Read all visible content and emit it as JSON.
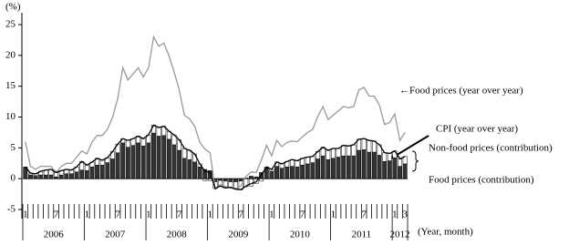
{
  "chart_data": {
    "type": "bar-line",
    "y_axis_label": "(%)",
    "x_axis_label": "(Year, month)",
    "categories": [
      "1",
      null,
      null,
      null,
      null,
      null,
      "7",
      null,
      null,
      null,
      null,
      null,
      "1",
      null,
      null,
      null,
      null,
      null,
      "7",
      null,
      null,
      null,
      null,
      null,
      "1",
      null,
      null,
      null,
      null,
      null,
      "7",
      null,
      null,
      null,
      null,
      null,
      "1",
      null,
      null,
      null,
      null,
      null,
      "7",
      null,
      null,
      null,
      null,
      null,
      "1",
      null,
      null,
      null,
      null,
      null,
      "7",
      null,
      null,
      null,
      null,
      null,
      "1",
      null,
      null,
      null,
      null,
      null,
      "7",
      null,
      null,
      null,
      null,
      null,
      "1",
      null,
      "3"
    ],
    "years": [
      "2006",
      "2007",
      "2008",
      "2009",
      "2010",
      "2011",
      "2012"
    ],
    "series": [
      {
        "name": "Food prices (contribution)",
        "kind": "bar",
        "color": "#333333",
        "values": [
          1.9,
          0.6,
          0.5,
          0.6,
          0.6,
          0.6,
          0.3,
          0.6,
          0.8,
          0.8,
          1.1,
          1.4,
          1.3,
          1.9,
          2.2,
          2.2,
          2.6,
          3.2,
          4.2,
          5.8,
          5.1,
          5.4,
          5.8,
          5.3,
          5.8,
          7.4,
          6.9,
          7.0,
          6.4,
          5.5,
          4.6,
          3.3,
          3.1,
          2.7,
          1.9,
          1.5,
          1.3,
          -0.5,
          -0.3,
          -0.4,
          -0.5,
          -0.5,
          -0.4,
          0.1,
          0.4,
          0.3,
          1.0,
          1.7,
          1.2,
          2.0,
          1.7,
          1.9,
          2.0,
          1.9,
          2.2,
          2.4,
          2.6,
          3.2,
          3.7,
          3.1,
          3.3,
          3.5,
          3.7,
          3.7,
          3.7,
          4.6,
          4.7,
          4.3,
          4.3,
          3.8,
          2.8,
          2.9,
          3.4,
          2.0,
          2.4
        ]
      },
      {
        "name": "Non-food prices (contribution)",
        "kind": "bar",
        "color": "#ffffff",
        "values": [
          0.0,
          0.3,
          0.3,
          0.6,
          0.8,
          0.9,
          0.7,
          0.7,
          0.7,
          0.6,
          0.8,
          1.4,
          0.9,
          0.8,
          1.1,
          0.8,
          0.8,
          1.2,
          1.4,
          0.7,
          1.1,
          1.1,
          1.1,
          1.2,
          1.3,
          1.3,
          1.4,
          1.5,
          1.3,
          1.6,
          1.7,
          1.6,
          1.5,
          1.3,
          0.5,
          -0.3,
          -0.3,
          -1.1,
          -0.9,
          -1.1,
          -0.9,
          -1.2,
          -1.4,
          -1.3,
          -1.2,
          -0.8,
          -0.4,
          0.2,
          0.3,
          0.7,
          0.7,
          0.9,
          1.1,
          1.0,
          1.1,
          1.1,
          1.0,
          1.2,
          1.4,
          1.5,
          1.6,
          1.4,
          1.7,
          1.6,
          1.8,
          1.8,
          1.8,
          1.9,
          1.8,
          1.7,
          1.4,
          1.2,
          1.1,
          1.2,
          1.2
        ]
      },
      {
        "name": "←Food prices (year over year)",
        "kind": "line",
        "color": "#999999",
        "values": [
          6,
          2,
          1.5,
          2,
          2,
          2,
          1,
          2,
          2.5,
          2.5,
          3.5,
          4.5,
          4,
          6,
          7,
          7,
          8,
          10,
          13,
          18,
          16,
          17,
          18,
          16.5,
          18,
          23,
          21.5,
          22,
          19.9,
          17.3,
          14.4,
          10.3,
          9.7,
          8.5,
          5.9,
          4.8,
          4.2,
          -1.7,
          -1.0,
          -1.3,
          -1.5,
          -1.6,
          -1.2,
          0.4,
          1.1,
          1.0,
          3.0,
          5.4,
          3.7,
          6.2,
          5.2,
          5.9,
          6.1,
          6.0,
          6.8,
          7.5,
          8.0,
          10.1,
          11.7,
          9.6,
          10.3,
          11.0,
          11.7,
          11.5,
          11.7,
          14.4,
          14.8,
          13.4,
          13.4,
          11.9,
          8.8,
          9.1,
          10.5,
          6.2,
          7.5
        ]
      },
      {
        "name": "CPI (year over year)",
        "kind": "line",
        "color": "#000000",
        "values": [
          1.9,
          0.9,
          0.8,
          1.2,
          1.4,
          1.5,
          1.0,
          1.3,
          1.5,
          1.4,
          1.9,
          2.8,
          2.2,
          2.7,
          3.3,
          3.0,
          3.4,
          4.4,
          5.6,
          6.5,
          6.2,
          6.5,
          6.9,
          6.5,
          7.1,
          8.7,
          8.3,
          8.5,
          7.7,
          7.1,
          6.3,
          4.9,
          4.6,
          4.0,
          2.4,
          1.2,
          1.0,
          -1.6,
          -1.2,
          -1.5,
          -1.4,
          -1.7,
          -1.8,
          -1.2,
          -0.8,
          -0.5,
          0.6,
          1.9,
          1.5,
          2.7,
          2.4,
          2.8,
          3.1,
          2.9,
          3.3,
          3.5,
          3.6,
          4.4,
          5.1,
          4.6,
          4.9,
          4.9,
          5.4,
          5.3,
          5.5,
          6.4,
          6.5,
          6.2,
          6.1,
          5.5,
          4.2,
          4.1,
          4.5,
          3.2,
          3.6
        ]
      }
    ],
    "ylim": [
      -5,
      25
    ],
    "yticks": [
      -5,
      0,
      5,
      10,
      15,
      20,
      25
    ]
  }
}
